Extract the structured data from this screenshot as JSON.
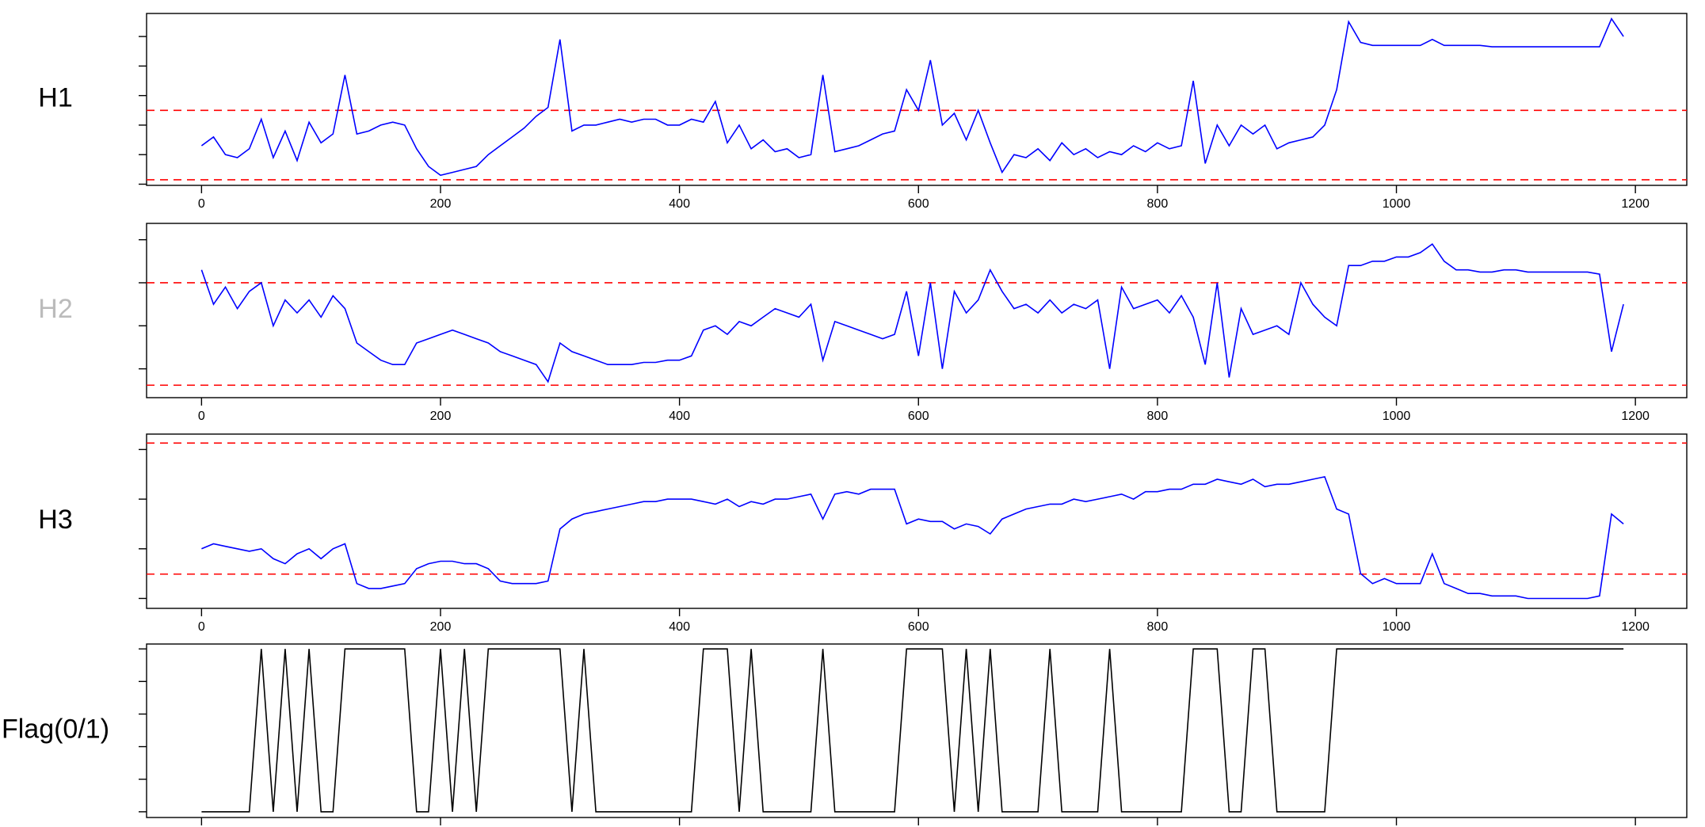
{
  "chart_data": [
    {
      "type": "line",
      "ylabel": "H1",
      "label_color": "#000000",
      "color": "#0000ff",
      "hline_color": "#ff0000",
      "hlines": [
        2.5,
        0.15
      ],
      "xlim": [
        -46,
        1243
      ],
      "xticks": [
        0,
        200,
        400,
        600,
        800,
        1000,
        1200
      ],
      "show_xtick_labels": true,
      "ylim": [
        -0.04,
        5.78
      ],
      "yticks": [
        0,
        1,
        2,
        3,
        4,
        5
      ],
      "x": [
        0,
        10,
        20,
        30,
        40,
        50,
        60,
        70,
        80,
        90,
        100,
        110,
        120,
        130,
        140,
        150,
        160,
        170,
        180,
        190,
        200,
        210,
        220,
        230,
        240,
        250,
        260,
        270,
        280,
        290,
        300,
        310,
        320,
        330,
        340,
        350,
        360,
        370,
        380,
        390,
        400,
        410,
        420,
        430,
        440,
        450,
        460,
        470,
        480,
        490,
        500,
        510,
        520,
        530,
        540,
        550,
        560,
        570,
        580,
        590,
        600,
        610,
        620,
        630,
        640,
        650,
        660,
        670,
        680,
        690,
        700,
        710,
        720,
        730,
        740,
        750,
        760,
        770,
        780,
        790,
        800,
        810,
        820,
        830,
        840,
        850,
        860,
        870,
        880,
        890,
        900,
        910,
        920,
        930,
        940,
        950,
        960,
        970,
        980,
        990,
        1000,
        1010,
        1020,
        1030,
        1040,
        1050,
        1060,
        1070,
        1080,
        1090,
        1100,
        1110,
        1120,
        1130,
        1140,
        1150,
        1160,
        1170,
        1180,
        1190
      ],
      "values": [
        1.3,
        1.6,
        1.0,
        0.9,
        1.2,
        2.2,
        0.9,
        1.8,
        0.8,
        2.1,
        1.4,
        1.7,
        3.7,
        1.7,
        1.8,
        2.0,
        2.1,
        2.0,
        1.2,
        0.6,
        0.3,
        0.4,
        0.5,
        0.6,
        1.0,
        1.3,
        1.6,
        1.9,
        2.3,
        2.6,
        4.9,
        1.8,
        2.0,
        2.0,
        2.1,
        2.2,
        2.1,
        2.2,
        2.2,
        2.0,
        2.0,
        2.2,
        2.1,
        2.8,
        1.4,
        2.0,
        1.2,
        1.5,
        1.1,
        1.2,
        0.9,
        1.0,
        3.7,
        1.1,
        1.2,
        1.3,
        1.5,
        1.7,
        1.8,
        3.2,
        2.5,
        4.2,
        2.0,
        2.4,
        1.5,
        2.5,
        1.4,
        0.4,
        1.0,
        0.9,
        1.2,
        0.8,
        1.4,
        1.0,
        1.2,
        0.9,
        1.1,
        1.0,
        1.3,
        1.1,
        1.4,
        1.2,
        1.3,
        3.5,
        0.7,
        2.0,
        1.3,
        2.0,
        1.7,
        2.0,
        1.2,
        1.4,
        1.5,
        1.6,
        2.0,
        3.2,
        5.5,
        4.8,
        4.7,
        4.7,
        4.7,
        4.7,
        4.7,
        4.9,
        4.7,
        4.7,
        4.7,
        4.7,
        4.65,
        4.65,
        4.65,
        4.65,
        4.65,
        4.65,
        4.65,
        4.65,
        4.65,
        4.65,
        5.6,
        5.0
      ]
    },
    {
      "type": "line",
      "ylabel": "H2",
      "label_color": "#bbbbbb",
      "color": "#0000ff",
      "hline_color": "#ff0000",
      "hlines": [
        2.0,
        -0.38
      ],
      "xlim": [
        -46,
        1243
      ],
      "xticks": [
        0,
        200,
        400,
        600,
        800,
        1000,
        1200
      ],
      "show_xtick_labels": true,
      "ylim": [
        -0.67,
        3.38
      ],
      "yticks": [
        0,
        1,
        2,
        3
      ],
      "x": [
        0,
        10,
        20,
        30,
        40,
        50,
        60,
        70,
        80,
        90,
        100,
        110,
        120,
        130,
        140,
        150,
        160,
        170,
        180,
        190,
        200,
        210,
        220,
        230,
        240,
        250,
        260,
        270,
        280,
        290,
        300,
        310,
        320,
        330,
        340,
        350,
        360,
        370,
        380,
        390,
        400,
        410,
        420,
        430,
        440,
        450,
        460,
        470,
        480,
        490,
        500,
        510,
        520,
        530,
        540,
        550,
        560,
        570,
        580,
        590,
        600,
        610,
        620,
        630,
        640,
        650,
        660,
        670,
        680,
        690,
        700,
        710,
        720,
        730,
        740,
        750,
        760,
        770,
        780,
        790,
        800,
        810,
        820,
        830,
        840,
        850,
        860,
        870,
        880,
        890,
        900,
        910,
        920,
        930,
        940,
        950,
        960,
        970,
        980,
        990,
        1000,
        1010,
        1020,
        1030,
        1040,
        1050,
        1060,
        1070,
        1080,
        1090,
        1100,
        1110,
        1120,
        1130,
        1140,
        1150,
        1160,
        1170,
        1180,
        1190
      ],
      "values": [
        2.3,
        1.5,
        1.9,
        1.4,
        1.8,
        2.0,
        1.0,
        1.6,
        1.3,
        1.6,
        1.2,
        1.7,
        1.4,
        0.6,
        0.4,
        0.2,
        0.1,
        0.1,
        0.6,
        0.7,
        0.8,
        0.9,
        0.8,
        0.7,
        0.6,
        0.4,
        0.3,
        0.2,
        0.1,
        -0.3,
        0.6,
        0.4,
        0.3,
        0.2,
        0.1,
        0.1,
        0.1,
        0.15,
        0.15,
        0.2,
        0.2,
        0.3,
        0.9,
        1.0,
        0.8,
        1.1,
        1.0,
        1.2,
        1.4,
        1.3,
        1.2,
        1.5,
        0.2,
        1.1,
        1.0,
        0.9,
        0.8,
        0.7,
        0.8,
        1.8,
        0.3,
        2.0,
        0.0,
        1.8,
        1.3,
        1.6,
        2.3,
        1.8,
        1.4,
        1.5,
        1.3,
        1.6,
        1.3,
        1.5,
        1.4,
        1.6,
        0.0,
        1.9,
        1.4,
        1.5,
        1.6,
        1.3,
        1.7,
        1.2,
        0.1,
        2.0,
        -0.2,
        1.4,
        0.8,
        0.9,
        1.0,
        0.8,
        2.0,
        1.5,
        1.2,
        1.0,
        2.4,
        2.4,
        2.5,
        2.5,
        2.6,
        2.6,
        2.7,
        2.9,
        2.5,
        2.3,
        2.3,
        2.25,
        2.25,
        2.3,
        2.3,
        2.25,
        2.25,
        2.25,
        2.25,
        2.25,
        2.25,
        2.2,
        0.4,
        1.5
      ]
    },
    {
      "type": "line",
      "ylabel": "H3",
      "label_color": "#000000",
      "color": "#0000ff",
      "hline_color": "#ff0000",
      "hlines": [
        3.13,
        0.49
      ],
      "xlim": [
        -46,
        1243
      ],
      "xticks": [
        0,
        200,
        400,
        600,
        800,
        1000,
        1200
      ],
      "show_xtick_labels": true,
      "ylim": [
        -0.2,
        3.31
      ],
      "yticks": [
        0,
        1,
        2,
        3
      ],
      "x": [
        0,
        10,
        20,
        30,
        40,
        50,
        60,
        70,
        80,
        90,
        100,
        110,
        120,
        130,
        140,
        150,
        160,
        170,
        180,
        190,
        200,
        210,
        220,
        230,
        240,
        250,
        260,
        270,
        280,
        290,
        300,
        310,
        320,
        330,
        340,
        350,
        360,
        370,
        380,
        390,
        400,
        410,
        420,
        430,
        440,
        450,
        460,
        470,
        480,
        490,
        500,
        510,
        520,
        530,
        540,
        550,
        560,
        570,
        580,
        590,
        600,
        610,
        620,
        630,
        640,
        650,
        660,
        670,
        680,
        690,
        700,
        710,
        720,
        730,
        740,
        750,
        760,
        770,
        780,
        790,
        800,
        810,
        820,
        830,
        840,
        850,
        860,
        870,
        880,
        890,
        900,
        910,
        920,
        930,
        940,
        950,
        960,
        970,
        980,
        990,
        1000,
        1010,
        1020,
        1030,
        1040,
        1050,
        1060,
        1070,
        1080,
        1090,
        1100,
        1110,
        1120,
        1130,
        1140,
        1150,
        1160,
        1170,
        1180,
        1190
      ],
      "values": [
        1.0,
        1.1,
        1.05,
        1.0,
        0.95,
        1.0,
        0.8,
        0.7,
        0.9,
        1.0,
        0.8,
        1.0,
        1.1,
        0.3,
        0.2,
        0.2,
        0.25,
        0.3,
        0.6,
        0.7,
        0.75,
        0.75,
        0.7,
        0.7,
        0.6,
        0.35,
        0.3,
        0.3,
        0.3,
        0.35,
        1.4,
        1.6,
        1.7,
        1.75,
        1.8,
        1.85,
        1.9,
        1.95,
        1.95,
        2.0,
        2.0,
        2.0,
        1.95,
        1.9,
        2.0,
        1.85,
        1.95,
        1.9,
        2.0,
        2.0,
        2.05,
        2.1,
        1.6,
        2.1,
        2.15,
        2.1,
        2.2,
        2.2,
        2.2,
        1.5,
        1.6,
        1.55,
        1.55,
        1.4,
        1.5,
        1.45,
        1.3,
        1.6,
        1.7,
        1.8,
        1.85,
        1.9,
        1.9,
        2.0,
        1.95,
        2.0,
        2.05,
        2.1,
        2.0,
        2.15,
        2.15,
        2.2,
        2.2,
        2.3,
        2.3,
        2.4,
        2.35,
        2.3,
        2.4,
        2.25,
        2.3,
        2.3,
        2.35,
        2.4,
        2.45,
        1.8,
        1.7,
        0.5,
        0.3,
        0.4,
        0.3,
        0.3,
        0.3,
        0.9,
        0.3,
        0.2,
        0.1,
        0.1,
        0.05,
        0.05,
        0.05,
        0.0,
        0.0,
        0.0,
        0.0,
        0.0,
        0.0,
        0.05,
        1.7,
        1.5
      ]
    },
    {
      "type": "line",
      "ylabel": "Flag(0/1)",
      "label_color": "#000000",
      "color": "#000000",
      "xlim": [
        -46,
        1243
      ],
      "xticks": [
        0,
        200,
        400,
        600,
        800,
        1000,
        1200
      ],
      "show_xtick_labels": false,
      "ylim": [
        -0.035,
        1.03
      ],
      "yticks": [
        0,
        0.2,
        0.4,
        0.6,
        0.8,
        1
      ],
      "x": [
        0,
        10,
        20,
        30,
        40,
        50,
        60,
        70,
        80,
        90,
        100,
        110,
        120,
        130,
        140,
        150,
        160,
        170,
        180,
        190,
        200,
        210,
        220,
        230,
        240,
        250,
        260,
        270,
        280,
        290,
        300,
        310,
        320,
        330,
        340,
        350,
        360,
        370,
        380,
        390,
        400,
        410,
        420,
        430,
        440,
        450,
        460,
        470,
        480,
        490,
        500,
        510,
        520,
        530,
        540,
        550,
        560,
        570,
        580,
        590,
        600,
        610,
        620,
        630,
        640,
        650,
        660,
        670,
        680,
        690,
        700,
        710,
        720,
        730,
        740,
        750,
        760,
        770,
        780,
        790,
        800,
        810,
        820,
        830,
        840,
        850,
        860,
        870,
        880,
        890,
        900,
        910,
        920,
        930,
        940,
        950,
        960,
        970,
        980,
        990,
        1000,
        1010,
        1020,
        1030,
        1040,
        1050,
        1060,
        1070,
        1080,
        1090,
        1100,
        1110,
        1120,
        1130,
        1140,
        1150,
        1160,
        1170,
        1180,
        1190
      ],
      "values": [
        0,
        0,
        0,
        0,
        0,
        1,
        0,
        1,
        0,
        1,
        0,
        0,
        1,
        1,
        1,
        1,
        1,
        1,
        0,
        0,
        1,
        0,
        1,
        0,
        1,
        1,
        1,
        1,
        1,
        1,
        1,
        0,
        1,
        0,
        0,
        0,
        0,
        0,
        0,
        0,
        0,
        0,
        1,
        1,
        1,
        0,
        1,
        0,
        0,
        0,
        0,
        0,
        1,
        0,
        0,
        0,
        0,
        0,
        0,
        1,
        1,
        1,
        1,
        0,
        1,
        0,
        1,
        0,
        0,
        0,
        0,
        1,
        0,
        0,
        0,
        0,
        1,
        0,
        0,
        0,
        0,
        0,
        0,
        1,
        1,
        1,
        0,
        0,
        1,
        1,
        0,
        0,
        0,
        0,
        0,
        1,
        1,
        1,
        1,
        1,
        1,
        1,
        1,
        1,
        1,
        1,
        1,
        1,
        1,
        1,
        1,
        1,
        1,
        1,
        1,
        1,
        1,
        1,
        1,
        1
      ]
    }
  ]
}
